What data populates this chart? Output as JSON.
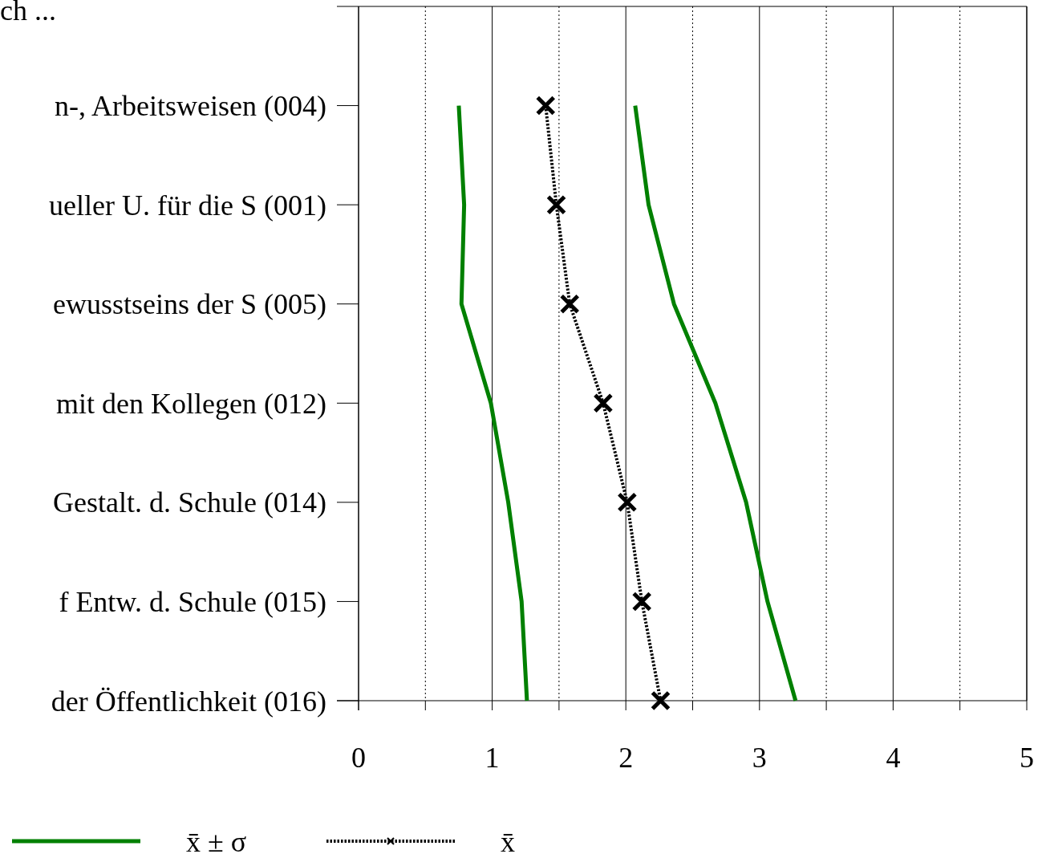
{
  "chart_data": {
    "type": "line",
    "title": "ch ...",
    "orientation": "horizontal",
    "categories": [
      "n-, Arbeitsweisen (004)",
      "ueller U. für die S (001)",
      "ewusstseins der S (005)",
      "mit den Kollegen (012)",
      "Gestalt. d. Schule (014)",
      "f Entw. d. Schule (015)",
      "der Öffentlichkeit (016)"
    ],
    "series": [
      {
        "name": "x̄ ± σ",
        "color": "#008000",
        "line_style": "solid",
        "marker": "none",
        "values": [
          0.75,
          0.79,
          0.77,
          0.99,
          1.12,
          1.22,
          1.26
        ]
      },
      {
        "color": "#008000",
        "line_style": "solid",
        "marker": "none",
        "values": [
          2.07,
          2.17,
          2.36,
          2.67,
          2.9,
          3.06,
          3.27
        ]
      },
      {
        "name": "x̄",
        "color": "#000000",
        "line_style": "dotted",
        "marker": "cross",
        "values": [
          1.4,
          1.48,
          1.58,
          1.83,
          2.01,
          2.12,
          2.26
        ]
      }
    ],
    "xlim": [
      0,
      5
    ],
    "xticks": [
      0,
      {
        "value": 0.5,
        "label": null
      },
      1,
      {
        "value": 1.5,
        "label": null
      },
      2,
      {
        "value": 2.5,
        "label": null
      },
      3,
      {
        "value": 3.5,
        "label": null
      },
      4,
      {
        "value": 4.5,
        "label": null
      },
      5
    ],
    "grid": "x",
    "legend": "bottom"
  }
}
